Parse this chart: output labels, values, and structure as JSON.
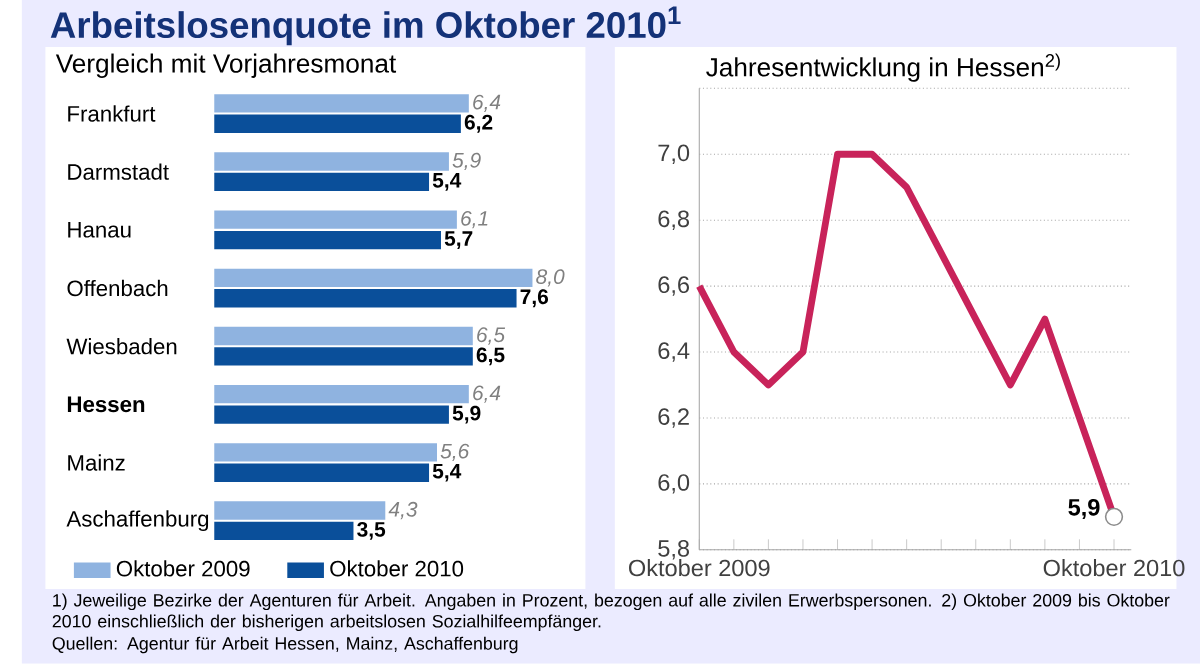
{
  "chart_data": [
    {
      "type": "bar",
      "orientation": "horizontal",
      "title": "Arbeitslosenquote im Oktober 2010$^{1}$",
      "subtitle": "Vergleich mit Vorjahresmonat",
      "categories": [
        "Frankfurt",
        "Darmstadt",
        "Hanau",
        "Offenbach",
        "Wiesbaden",
        "**Hessen**",
        "Mainz",
        "Aschaffenburg"
      ],
      "series": [
        {
          "name": "Oktober 2009",
          "color": "#8fb3e0",
          "values": [
            6.4,
            5.9,
            6.1,
            8.0,
            6.5,
            6.4,
            5.6,
            4.3
          ],
          "value_labels": [
            "6,4",
            "5,9",
            "6,1",
            "8,0",
            "6,5",
            "6,4",
            "5,6",
            "4,3"
          ]
        },
        {
          "name": "Oktober 2010",
          "color": "#0a4f9a",
          "values": [
            6.2,
            5.4,
            5.7,
            7.6,
            6.5,
            5.9,
            5.4,
            3.5
          ],
          "value_labels": [
            "6,2",
            "5,4",
            "5,7",
            "7,6",
            "6,5",
            "5,9",
            "5,4",
            "3,5"
          ]
        }
      ],
      "tick_labels": "y",
      "legend": "bottom",
      "annotations": [
        "1) Jeweilige Bezirke der Agenturen für Arbeit. Angaben in Prozent, bezogen auf alle zivilen Erwerbspersonen. 2) Oktober 2009 bis Oktober 2010 einschließlich der bisherigen arbeitslosen Sozialhilfeempfänger.",
        "Quellen: Agentur für Arbeit Hessen, Mainz, Aschaffenburg"
      ]
    },
    {
      "type": "line",
      "title": "Jahresentwicklung in Hessen$^{2)}$",
      "x": [
        "2009-10",
        "2009-11",
        "2009-12",
        "2010-01",
        "2010-02",
        "2010-03",
        "2010-04",
        "2010-05",
        "2010-06",
        "2010-07",
        "2010-08",
        "2010-09",
        "2010-10"
      ],
      "series": [
        {
          "color": "#c8235a",
          "values": [
            6.6,
            6.4,
            6.3,
            6.4,
            7.0,
            7.0,
            6.9,
            6.7,
            6.5,
            6.3,
            6.5,
            6.2,
            5.9
          ]
        }
      ],
      "xlim": [
        "2009-10",
        "2010-10-15"
      ],
      "ylim": [
        5.8,
        7.2
      ],
      "xticks": [
        {
          "value": "2009-10",
          "label": "Oktober 2009"
        },
        {
          "value": "2009-11",
          "label": null
        },
        {
          "value": "2009-12",
          "label": null
        },
        {
          "value": "2010-01",
          "label": null
        },
        {
          "value": "2010-02",
          "label": null
        },
        {
          "value": "2010-03",
          "label": null
        },
        {
          "value": "2010-04",
          "label": null
        },
        {
          "value": "2010-05",
          "label": null
        },
        {
          "value": "2010-06",
          "label": null
        },
        {
          "value": "2010-07",
          "label": null
        },
        {
          "value": "2010-08",
          "label": null
        },
        {
          "value": "2010-09",
          "label": null
        },
        {
          "value": "2010-10",
          "label": "Oktober 2010"
        }
      ],
      "yticks": [
        {
          "value": 5.8,
          "label": "5,8"
        },
        {
          "value": 6.0,
          "label": "6,0"
        },
        {
          "value": 6.2,
          "label": "6,2"
        },
        {
          "value": 6.4,
          "label": "6,4"
        },
        {
          "value": 6.6,
          "label": "6,6"
        },
        {
          "value": 6.8,
          "label": "6,8"
        },
        {
          "value": 7.0,
          "label": "7,0"
        },
        {
          "value": 7.2,
          "label": null
        }
      ],
      "grid": "y",
      "marker": "none",
      "line_style": "solid",
      "annotations": [
        {
          "text": "5,9",
          "x": "2010-10",
          "y": 5.9
        }
      ]
    }
  ]
}
